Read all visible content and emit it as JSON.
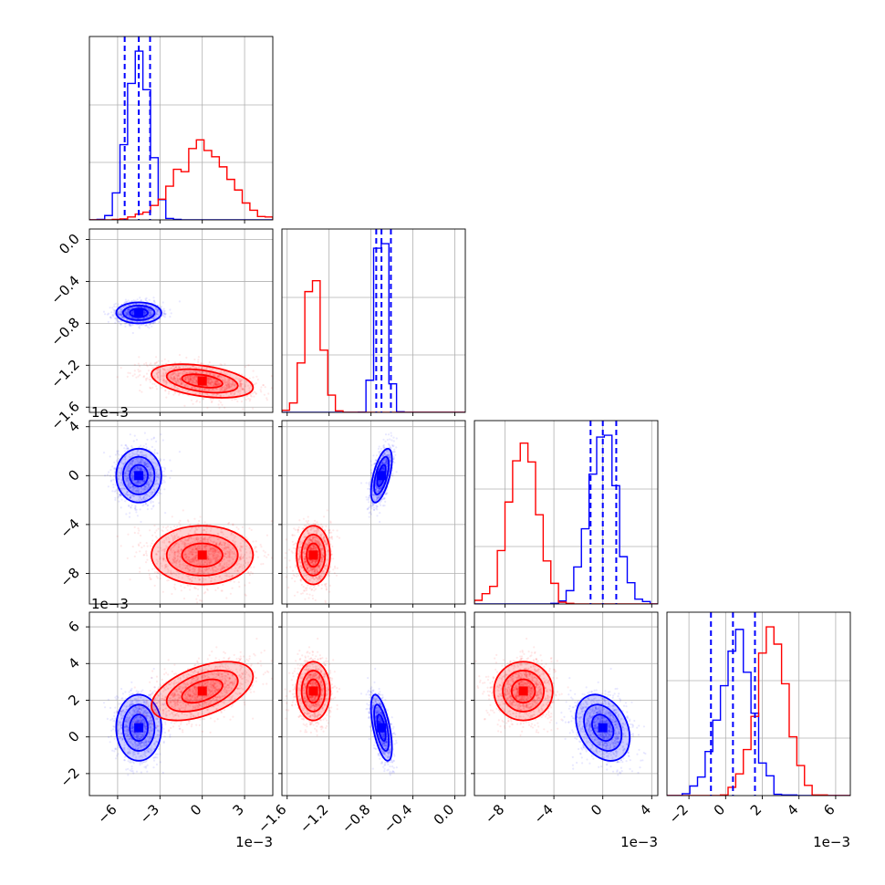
{
  "chart_data": {
    "type": "corner",
    "colors": {
      "series_a": "#0000ff",
      "series_b": "#ff0000",
      "grid": "#b0b0b0",
      "frame": "#000000"
    },
    "series": [
      {
        "color": "#0000ff",
        "mean": [
          -0.0045,
          -0.7,
          0.0,
          0.0005
        ],
        "sd": [
          0.0008,
          0.05,
          0.0011,
          0.0009
        ],
        "corr": [
          [
            1,
            0,
            0,
            0
          ],
          [
            0,
            1,
            0.6,
            -0.6
          ],
          [
            0,
            0.6,
            1,
            -0.3
          ],
          [
            0,
            -0.6,
            -0.3,
            1
          ]
        ]
      },
      {
        "color": "#ff0000",
        "mean": [
          0.0,
          -1.35,
          -0.0065,
          0.0025
        ],
        "sd": [
          0.0018,
          0.08,
          0.0012,
          0.0008
        ],
        "corr": [
          [
            1,
            -0.4,
            0,
            0.5
          ],
          [
            -0.4,
            1,
            0,
            0
          ],
          [
            0,
            0,
            1,
            0
          ],
          [
            0.5,
            0,
            0,
            1
          ]
        ]
      }
    ],
    "grid": true,
    "parameters": [
      {
        "xlim": [
          -0.008,
          0.005
        ],
        "xticks": [
          -0.006,
          -0.003,
          0.0,
          0.003
        ],
        "xticklabels": [
          "−6",
          "−3",
          "0",
          "3"
        ],
        "offset": "1e−3"
      },
      {
        "xlim": [
          -1.65,
          0.1
        ],
        "xticks": [
          -1.6,
          -1.2,
          -0.8,
          -0.4,
          0.0
        ],
        "xticklabels": [
          "−1.6",
          "−1.2",
          "−0.8",
          "−0.4",
          "0.0"
        ],
        "yticks": [
          0.0,
          -0.4,
          -0.8,
          -1.2,
          -1.6
        ],
        "yticklabels": [
          "0.0",
          "−0.4",
          "−0.8",
          "−1.2",
          "−1.6"
        ],
        "offset": ""
      },
      {
        "xlim": [
          -0.0105,
          0.0045
        ],
        "xticks": [
          -0.008,
          -0.004,
          0.0,
          0.004
        ],
        "xticklabels": [
          "−8",
          "−4",
          "0",
          "4"
        ],
        "yticks": [
          0.004,
          0.0,
          -0.004,
          -0.008
        ],
        "yticklabels": [
          "4",
          "0",
          "−4",
          "−8"
        ],
        "offset": "1e−3"
      },
      {
        "xlim": [
          -0.0032,
          0.0068
        ],
        "xticks": [
          -0.002,
          0.0,
          0.002,
          0.004,
          0.006
        ],
        "xticklabels": [
          "−2",
          "0",
          "2",
          "4",
          "6"
        ],
        "yticks": [
          0.006,
          0.004,
          0.002,
          0.0,
          -0.002
        ],
        "yticklabels": [
          "6",
          "4",
          "2",
          "0",
          "−2"
        ],
        "offset": "1e−3"
      }
    ],
    "quantile_lines": [
      [
        -0.0055,
        -0.0045,
        -0.0037
      ],
      [
        -0.75,
        -0.7,
        -0.61
      ],
      [
        -0.001,
        0.0,
        0.0011
      ],
      [
        -0.0008,
        0.0004,
        0.0016
      ]
    ]
  }
}
